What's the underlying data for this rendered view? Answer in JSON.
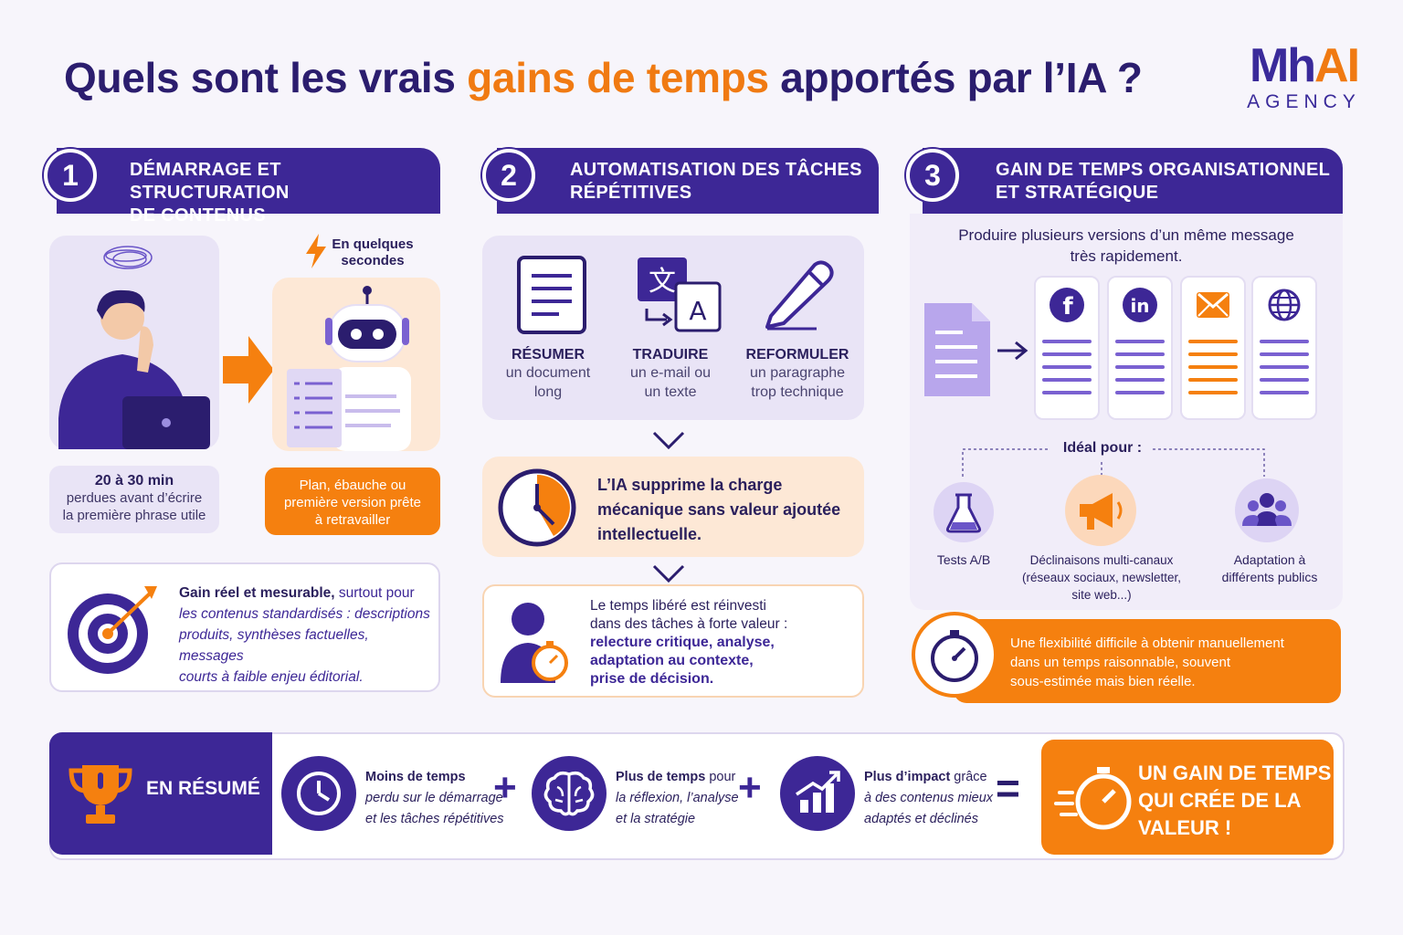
{
  "header": {
    "title_part1": "Quels sont les vrais ",
    "title_highlight": "gains de temps",
    "title_part2": " apportés par l’IA ?"
  },
  "logo": {
    "line1_a": "Mh",
    "line1_b": "AI",
    "line2": "AGENCY"
  },
  "section1": {
    "number": "1",
    "title_line1": "DÉMARRAGE ET STRUCTURATION",
    "title_line2": "DE CONTENUS",
    "speed_label_line1": "En quelques",
    "speed_label_line2": "secondes",
    "lost_time_bold": "20 à 30 min",
    "lost_time_line1": "perdues avant d’écrire",
    "lost_time_line2": "la première phrase utile",
    "result_line1": "Plan, ébauche ou",
    "result_line2": "première version prête",
    "result_line3": "à retravailler",
    "gain_bold": "Gain réel et mesurable,",
    "gain_rest1": " surtout pour",
    "gain_line2": "les contenus standardisés : descriptions",
    "gain_line3": "produits, synthèses factuelles, messages",
    "gain_line4": "courts à faible enjeu éditorial."
  },
  "section2": {
    "number": "2",
    "title_line1": "AUTOMATISATION DES TÂCHES",
    "title_line2": "RÉPÉTITIVES",
    "tasks": [
      {
        "label": "RÉSUMER",
        "line1": "un document",
        "line2": "long",
        "icon": "document-icon"
      },
      {
        "label": "TRADUIRE",
        "line1": "un e-mail ou",
        "line2": "un texte",
        "icon": "translate-icon"
      },
      {
        "label": "REFORMULER",
        "line1": "un paragraphe",
        "line2": "trop technique",
        "icon": "pencil-icon"
      }
    ],
    "charge_line1": "L’IA supprime la charge",
    "charge_line2": "mécanique sans valeur ajoutée",
    "charge_line3": "intellectuelle.",
    "reinvest_line1": "Le temps libéré est réinvesti",
    "reinvest_line2": "dans des tâches à forte valeur :",
    "reinvest_bold1": "relecture critique, analyse,",
    "reinvest_bold2": "adaptation au contexte,",
    "reinvest_bold3": "prise de décision."
  },
  "section3": {
    "number": "3",
    "title_line1": "GAIN DE TEMPS ORGANISATIONNEL",
    "title_line2": "ET STRATÉGIQUE",
    "intro_line1": "Produire plusieurs versions d’un même message",
    "intro_line2": "très rapidement.",
    "ideal_label": "Idéal pour :",
    "ideal_items": [
      {
        "line1": "Tests A/B",
        "line2": "",
        "line3": ""
      },
      {
        "line1": "Déclinaisons multi-canaux",
        "line2": "(réseaux sociaux, newsletter,",
        "line3": "site web...)"
      },
      {
        "line1": "Adaptation à",
        "line2": "différents publics",
        "line3": ""
      }
    ],
    "flex_line1": "Une flexibilité difficile à obtenir manuellement",
    "flex_line2": "dans un temps raisonnable, souvent",
    "flex_line3": "sous-estimée mais bien réelle."
  },
  "summary": {
    "label": "EN RÉSUMÉ",
    "items": [
      {
        "bold": "Moins de temps",
        "rest": "",
        "line2": "perdu sur le démarrage",
        "line3": "et les tâches répétitives"
      },
      {
        "bold": "Plus de temps",
        "rest": " pour",
        "line2": "la réflexion, l’analyse",
        "line3": "et la stratégie"
      },
      {
        "bold": "Plus d’impact",
        "rest": " grâce",
        "line2": "à des contenus mieux",
        "line3": "adaptés et déclinés"
      }
    ],
    "plus": "+",
    "equals": "=",
    "result_line1": "UN GAIN DE TEMPS",
    "result_line2": "QUI CRÉE DE LA",
    "result_line3": "VALEUR !"
  },
  "colors": {
    "primary": "#3d2796",
    "accent": "#f5800f",
    "lavender": "#e9e4f6",
    "peach": "#fde8d6"
  }
}
